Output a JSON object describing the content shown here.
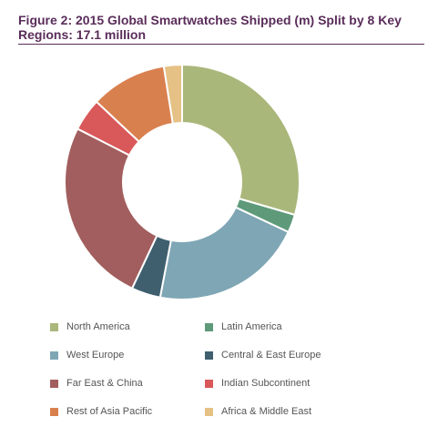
{
  "chart_data": {
    "type": "pie",
    "donut": true,
    "title": "Figure 2: 2015 Global Smartwatches Shipped (m) Split by 8 Key Regions: 17.1 million",
    "unit": "%",
    "legend_position": "bottom",
    "slices": [
      {
        "name": "North America",
        "value": 29.5,
        "color": "#a9b77a"
      },
      {
        "name": "Latin America",
        "value": 2.5,
        "color": "#5e9a7a"
      },
      {
        "name": "West Europe",
        "value": 21.0,
        "color": "#7fa6b5"
      },
      {
        "name": "Central & East Europe",
        "value": 4.0,
        "color": "#3f5f6f"
      },
      {
        "name": "Far East & China",
        "value": 25.5,
        "color": "#a25e5e"
      },
      {
        "name": "Indian Subcontinent",
        "value": 4.5,
        "color": "#d9585a"
      },
      {
        "name": "Rest of Asia Pacific",
        "value": 10.5,
        "color": "#d9804f"
      },
      {
        "name": "Africa & Middle East",
        "value": 2.5,
        "color": "#e5c185"
      }
    ]
  }
}
